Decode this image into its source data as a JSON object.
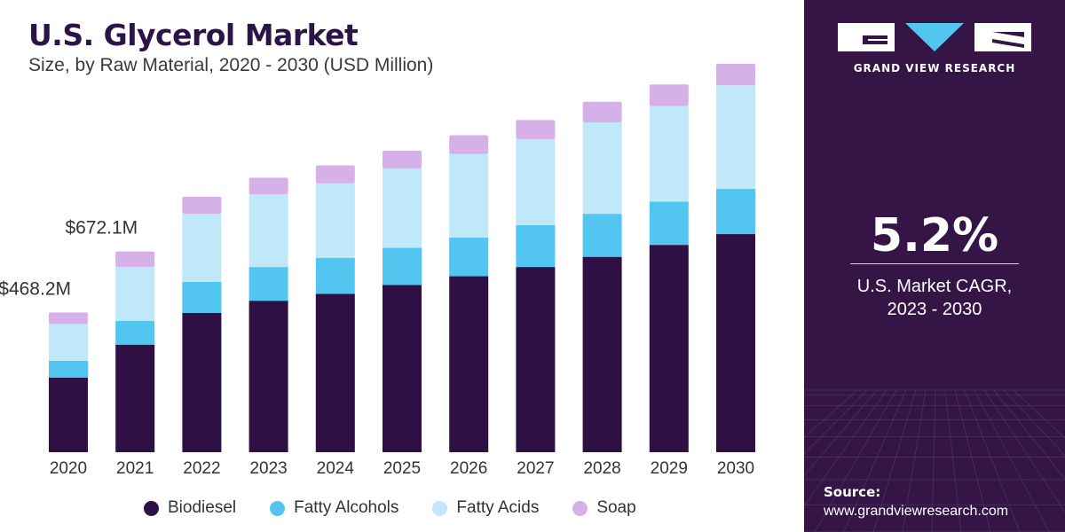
{
  "title": "U.S. Glycerol Market",
  "subtitle": "Size, by Raw Material, 2020 - 2030 (USD Million)",
  "colors": {
    "biodiesel": "#2f1045",
    "fatty_alcohols": "#52c6f0",
    "fatty_acids": "#bfe9f8",
    "soap": "#d6b0e8",
    "panel": "#341546"
  },
  "chart_data": {
    "type": "bar",
    "stacked": true,
    "categories": [
      "2020",
      "2021",
      "2022",
      "2023",
      "2024",
      "2025",
      "2026",
      "2027",
      "2028",
      "2029",
      "2030"
    ],
    "series": [
      {
        "name": "Biodiesel",
        "values": [
          250,
          360,
          466,
          507,
          530,
          560,
          589,
          620,
          654,
          694,
          730
        ]
      },
      {
        "name": "Fatty Alcohols",
        "values": [
          56,
          80,
          104,
          113,
          120,
          124,
          130,
          140,
          144,
          145,
          152
        ]
      },
      {
        "name": "Fatty Acids",
        "values": [
          123,
          180,
          228,
          243,
          250,
          265,
          279,
          288,
          306,
          320,
          346
        ]
      },
      {
        "name": "Soap",
        "values": [
          39,
          52,
          57,
          56,
          60,
          60,
          63,
          64,
          69,
          72,
          72
        ]
      }
    ],
    "totals_labeled": {
      "2020": "$468.2M",
      "2021": "$672.1M"
    },
    "ylim": [
      0,
      1300
    ],
    "xlabel": "",
    "ylabel": "",
    "grid": false,
    "legend_position": "bottom"
  },
  "legend": [
    {
      "label": "Biodiesel",
      "key": "biodiesel"
    },
    {
      "label": "Fatty Alcohols",
      "key": "fatty_alcohols"
    },
    {
      "label": "Fatty Acids",
      "key": "fatty_acids"
    },
    {
      "label": "Soap",
      "key": "soap"
    }
  ],
  "side_panel": {
    "brand": "GRAND VIEW RESEARCH",
    "cagr_value": "5.2%",
    "cagr_label_line1": "U.S. Market CAGR,",
    "cagr_label_line2": "2023 - 2030",
    "source_label": "Source:",
    "source_url": "www.grandviewresearch.com"
  }
}
